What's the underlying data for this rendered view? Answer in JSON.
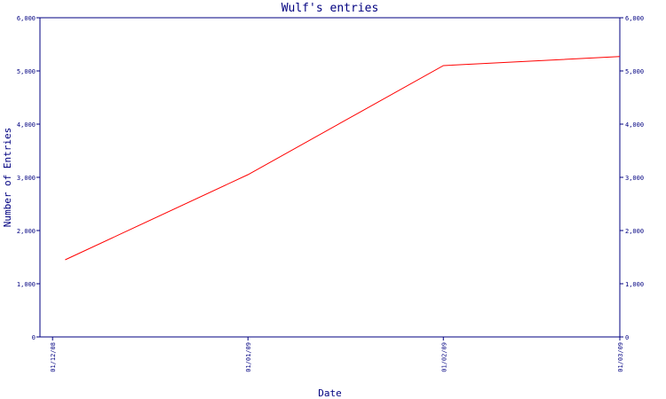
{
  "chart_data": {
    "type": "line",
    "title": "Wulf's entries",
    "xlabel": "Date",
    "ylabel": "Number of Entries",
    "x_ticks": [
      "01/12/08",
      "01/01/09",
      "01/02/09",
      "01/03/09"
    ],
    "x_tick_values": [
      "2008-12-01",
      "2009-01-01",
      "2009-02-01",
      "2009-03-01"
    ],
    "x_range": [
      "2008-11-29",
      "2009-03-01"
    ],
    "y_ticks": [
      "0",
      "1,000",
      "2,000",
      "3,000",
      "4,000",
      "5,000",
      "6,000"
    ],
    "y_tick_values": [
      0,
      1000,
      2000,
      3000,
      4000,
      5000,
      6000
    ],
    "ylim": [
      0,
      6000
    ],
    "right_axis": true,
    "grid": false,
    "colors": {
      "axis": "#000080",
      "line": "#ff0000",
      "text": "#000080"
    },
    "series": [
      {
        "points": [
          {
            "x": "2008-12-03",
            "y": 1450
          },
          {
            "x": "2009-01-01",
            "y": 3050
          },
          {
            "x": "2009-02-01",
            "y": 5100
          },
          {
            "x": "2009-03-01",
            "y": 5270
          }
        ]
      }
    ]
  }
}
